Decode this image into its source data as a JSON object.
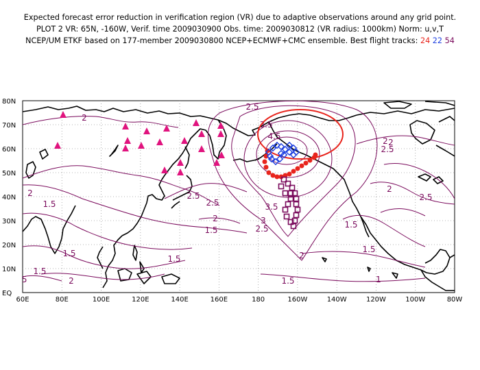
{
  "title": {
    "line1": "Expected forecast error reduction in verification region (VR) due to adaptive observations around any grid point.",
    "line2": "PLOT 2 VR: 65N, -160W, Verif. time 2009030900 Obs. time: 2009030812 (VR radius: 1000km) Norm: u,v,T",
    "line3_prefix": "NCEP/UM ETKF based on 177-member 2009030800 NCEP+ECMWF+CMC ensemble. Best flight tracks:",
    "track_ids": [
      "24",
      "22",
      "54"
    ]
  },
  "axes": {
    "lat_labels": [
      "80N",
      "70N",
      "60N",
      "50N",
      "40N",
      "30N",
      "20N",
      "10N",
      "EQ"
    ],
    "lon_labels": [
      "60E",
      "80E",
      "100E",
      "120E",
      "140E",
      "160E",
      "180",
      "160W",
      "140W",
      "120W",
      "100W",
      "80W"
    ]
  },
  "contour_labels": [
    "2.5",
    "3.5",
    "4.5",
    "2.5",
    "2",
    "2",
    "1.5",
    "2.5",
    "2.5",
    "3.5",
    "3",
    "2.5",
    "2",
    "1.5",
    "2",
    "2",
    "1.5",
    "2.5",
    "1.5",
    "1.5",
    "1.5",
    "1.5",
    "2",
    "2",
    "1.5",
    "2",
    "1.5",
    "1"
  ],
  "colors": {
    "contour": "#7a0a5c",
    "track_24": "#e8241c",
    "track_22": "#1d3fe0",
    "track_54": "#7a0a5c",
    "triangle": "#e0137e",
    "verification_circle": "#e8241c"
  },
  "legend_tracks": [
    {
      "id": "24",
      "color": "red"
    },
    {
      "id": "22",
      "color": "blue"
    },
    {
      "id": "54",
      "color": "purple"
    }
  ],
  "observation_sites": "magenta-triangle-icon",
  "grid": "dotted"
}
